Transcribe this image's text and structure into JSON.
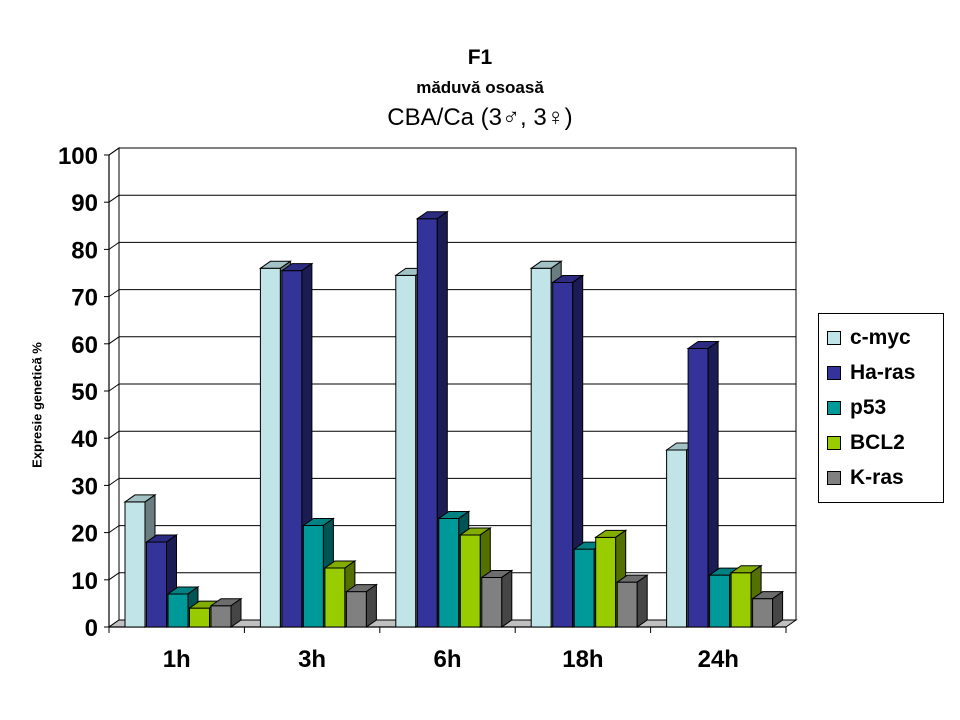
{
  "chart_data": {
    "type": "bar",
    "title": "F1",
    "subtitle": "măduvă osoasă",
    "subtitle2": "CBA/Ca (3♂, 3♀)",
    "xlabel": "",
    "ylabel": "Expresie genetică %",
    "ylim": [
      0,
      100
    ],
    "yticks": [
      "0",
      "10",
      "20",
      "30",
      "40",
      "50",
      "60",
      "70",
      "80",
      "90",
      "100"
    ],
    "categories": [
      "1h",
      "3h",
      "6h",
      "18h",
      "24h"
    ],
    "grid": true,
    "legend_position": "right",
    "series": [
      {
        "name": "c-myc",
        "color": "#C0E4E8",
        "values": [
          26.5,
          76,
          74.5,
          76,
          37.5
        ]
      },
      {
        "name": "Ha-ras",
        "color": "#333399",
        "values": [
          18,
          75.5,
          86.5,
          73,
          59
        ]
      },
      {
        "name": "p53",
        "color": "#009999",
        "values": [
          7,
          21.5,
          23,
          16.5,
          11
        ]
      },
      {
        "name": "BCL2",
        "color": "#99CC00",
        "values": [
          4,
          12.5,
          19.5,
          19,
          11.5
        ]
      },
      {
        "name": "K-ras",
        "color": "#808080",
        "values": [
          4.5,
          7.5,
          10.5,
          9.5,
          6
        ]
      }
    ]
  }
}
